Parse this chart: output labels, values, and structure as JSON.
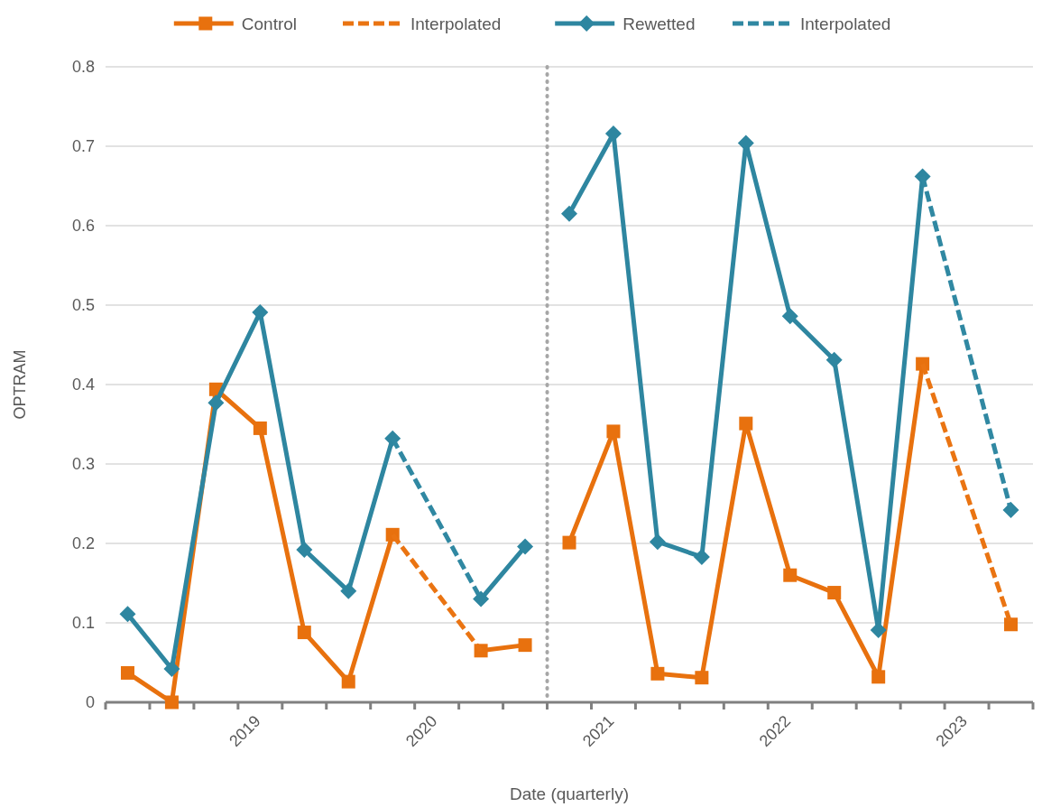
{
  "chart_data": {
    "type": "line",
    "xlabel": "Date (quarterly)",
    "ylabel": "OPTRAM",
    "xlim": [
      2018.25,
      2023.5
    ],
    "xticks": [
      {
        "value": 2018.25,
        "label": null
      },
      {
        "value": 2018.5,
        "label": null
      },
      {
        "value": 2018.75,
        "label": null
      },
      {
        "value": 2019,
        "label": "2019"
      },
      {
        "value": 2019.25,
        "label": null
      },
      {
        "value": 2019.5,
        "label": null
      },
      {
        "value": 2019.75,
        "label": null
      },
      {
        "value": 2020,
        "label": "2020"
      },
      {
        "value": 2020.25,
        "label": null
      },
      {
        "value": 2020.5,
        "label": null
      },
      {
        "value": 2020.75,
        "label": null
      },
      {
        "value": 2021,
        "label": "2021"
      },
      {
        "value": 2021.25,
        "label": null
      },
      {
        "value": 2021.5,
        "label": null
      },
      {
        "value": 2021.75,
        "label": null
      },
      {
        "value": 2022,
        "label": "2022"
      },
      {
        "value": 2022.25,
        "label": null
      },
      {
        "value": 2022.5,
        "label": null
      },
      {
        "value": 2022.75,
        "label": null
      },
      {
        "value": 2023,
        "label": "2023"
      },
      {
        "value": 2023.25,
        "label": null
      },
      {
        "value": 2023.5,
        "label": null
      }
    ],
    "ylim": [
      0,
      0.8
    ],
    "yticks": [
      0,
      0.1,
      0.2,
      0.3,
      0.4,
      0.5,
      0.6,
      0.7,
      0.8
    ],
    "grid": "y",
    "legend": "top",
    "ref_lines": [
      {
        "axis": "x",
        "value": 2020.75,
        "color": "#a6a6a6",
        "line_style": "dotted"
      }
    ],
    "series": [
      {
        "name": "Control",
        "color": "#e8710e",
        "marker": "square",
        "line_style": "solid",
        "x": [
          2018.375,
          2018.625,
          2018.875,
          2019.125,
          2019.375,
          2019.625,
          2019.875,
          2020.125,
          2020.375,
          2020.625,
          2020.75,
          2020.875,
          2021.125,
          2021.375,
          2021.625,
          2021.875,
          2022.125,
          2022.375,
          2022.625,
          2022.875,
          2023.125,
          2023.375
        ],
        "values": [
          0.037,
          0.0,
          0.394,
          0.345,
          0.088,
          0.026,
          0.211,
          null,
          0.065,
          0.072,
          null,
          0.201,
          0.341,
          0.036,
          0.031,
          0.351,
          0.16,
          0.138,
          0.032,
          0.426,
          null,
          0.098
        ]
      },
      {
        "name": "Interpolated",
        "color": "#ea7412",
        "marker": "none",
        "line_style": "dashed",
        "x": [
          2019.875,
          2020.375,
          2020.75,
          2022.875,
          2023.375
        ],
        "values": [
          0.211,
          0.065,
          null,
          0.426,
          0.098
        ]
      },
      {
        "name": "Rewetted",
        "color": "#2e86a0",
        "marker": "diamond",
        "line_style": "solid",
        "x": [
          2018.375,
          2018.625,
          2018.875,
          2019.125,
          2019.375,
          2019.625,
          2019.875,
          2020.125,
          2020.375,
          2020.625,
          2020.75,
          2020.875,
          2021.125,
          2021.375,
          2021.625,
          2021.875,
          2022.125,
          2022.375,
          2022.625,
          2022.875,
          2023.125,
          2023.375
        ],
        "values": [
          0.111,
          0.042,
          0.377,
          0.491,
          0.192,
          0.14,
          0.332,
          null,
          0.13,
          0.196,
          null,
          0.615,
          0.716,
          0.202,
          0.183,
          0.704,
          0.486,
          0.431,
          0.091,
          0.662,
          null,
          0.242
        ]
      },
      {
        "name": "Interpolated",
        "color": "#3088a2",
        "marker": "none",
        "line_style": "dashed",
        "x": [
          2019.875,
          2020.375,
          2020.75,
          2022.875,
          2023.375
        ],
        "values": [
          0.332,
          0.13,
          null,
          0.662,
          0.242
        ]
      }
    ]
  }
}
